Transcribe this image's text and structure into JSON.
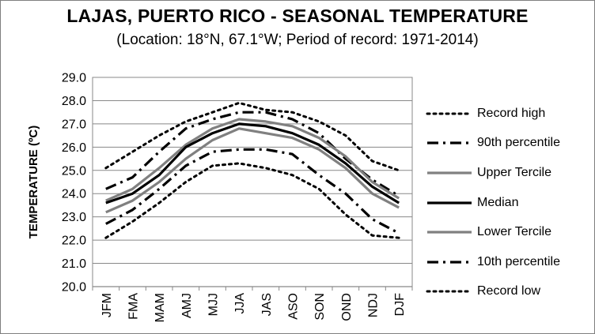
{
  "title": "LAJAS, PUERTO RICO - SEASONAL TEMPERATURE",
  "subtitle": "(Location: 18°N, 67.1°W; Period of record: 1971-2014)",
  "chart_data": {
    "type": "line",
    "title": "LAJAS, PUERTO RICO - SEASONAL TEMPERATURE",
    "subtitle": "(Location: 18°N, 67.1°W; Period of record: 1971-2014)",
    "xlabel": "",
    "ylabel": "TEMPERATURE (ºC)",
    "ylim": [
      20.0,
      29.0
    ],
    "yticks": [
      "20.0",
      "21.0",
      "22.0",
      "23.0",
      "24.0",
      "25.0",
      "26.0",
      "27.0",
      "28.0",
      "29.0"
    ],
    "categories": [
      "JFM",
      "FMA",
      "MAM",
      "AMJ",
      "MJJ",
      "JJA",
      "JAS",
      "ASO",
      "SON",
      "OND",
      "NDJ",
      "DJF"
    ],
    "grid": true,
    "legend_position": "right",
    "series": [
      {
        "name": "Record high",
        "style": "dotted",
        "color": "#000000",
        "values": [
          25.1,
          25.8,
          26.5,
          27.1,
          27.5,
          27.9,
          27.6,
          27.5,
          27.1,
          26.5,
          25.4,
          25.0
        ]
      },
      {
        "name": "90th percentile",
        "style": "dashdot",
        "color": "#000000",
        "values": [
          24.2,
          24.7,
          25.8,
          26.8,
          27.2,
          27.5,
          27.5,
          27.2,
          26.6,
          25.5,
          24.6,
          23.9
        ]
      },
      {
        "name": "Upper Tercile",
        "style": "solid",
        "color": "#808080",
        "values": [
          23.7,
          24.2,
          25.1,
          26.1,
          26.8,
          27.2,
          27.1,
          26.9,
          26.4,
          25.6,
          24.5,
          23.8
        ]
      },
      {
        "name": "Median",
        "style": "solid",
        "color": "#000000",
        "values": [
          23.6,
          24.0,
          24.8,
          26.0,
          26.6,
          27.0,
          26.9,
          26.6,
          26.1,
          25.3,
          24.3,
          23.6
        ]
      },
      {
        "name": "Lower Tercile",
        "style": "solid",
        "color": "#808080",
        "values": [
          23.2,
          23.7,
          24.5,
          25.5,
          26.3,
          26.8,
          26.6,
          26.4,
          25.9,
          25.1,
          24.0,
          23.4
        ]
      },
      {
        "name": "10th percentile",
        "style": "dashdot",
        "color": "#000000",
        "values": [
          22.7,
          23.3,
          24.2,
          25.2,
          25.8,
          25.9,
          25.9,
          25.7,
          24.8,
          24.0,
          22.9,
          22.3
        ]
      },
      {
        "name": "Record low",
        "style": "dotted",
        "color": "#000000",
        "values": [
          22.1,
          22.8,
          23.6,
          24.5,
          25.2,
          25.3,
          25.1,
          24.8,
          24.2,
          23.1,
          22.2,
          22.1
        ]
      }
    ]
  }
}
